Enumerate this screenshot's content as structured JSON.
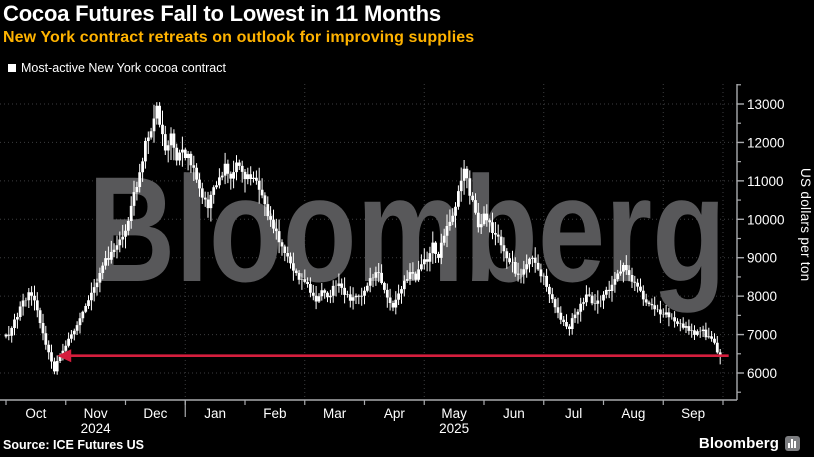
{
  "header": {
    "title": "Cocoa Futures Fall to Lowest in 11 Months",
    "subtitle": "New York contract retreats on outlook for improving supplies"
  },
  "legend": {
    "marker_color": "#ffffff",
    "label": "Most-active New York cocoa contract"
  },
  "footer": {
    "source": "Source: ICE Futures US",
    "brand": "Bloomberg",
    "brand_icon": "bar-chart-logo"
  },
  "colors": {
    "background": "#000000",
    "title": "#ffffff",
    "subtitle": "#ffb300",
    "bars": "#ffffff",
    "grid": "#3c3d3f",
    "axis": "#a9abae",
    "tick_label": "#ffffff",
    "annotation": "#d51e3d",
    "watermark": "#58585a"
  },
  "chart_data": {
    "type": "bar",
    "subtype": "ohlc-daily-bars",
    "title": "Cocoa Futures Fall to Lowest in 11 Months",
    "series_name": "Most-active New York cocoa contract",
    "xlabel": "",
    "ylabel": "US dollars per ton",
    "yticks": [
      6000,
      7000,
      8000,
      9000,
      10000,
      11000,
      12000,
      13000
    ],
    "ytick_minor_step": 500,
    "ylim": [
      5400,
      13450
    ],
    "grid": "dotted",
    "legend_position": "top-left",
    "watermark": "Bloomberg",
    "x_months": [
      "Oct",
      "Nov",
      "Dec",
      "Jan",
      "Feb",
      "Mar",
      "Apr",
      "May",
      "Jun",
      "Jul",
      "Aug",
      "Sep"
    ],
    "year_labels": [
      {
        "label": "2024",
        "month_index": 1
      },
      {
        "label": "2025",
        "month_index": 7
      }
    ],
    "vertical_grid_month_boundaries": [
      3,
      5,
      7,
      9,
      11,
      12
    ],
    "days_per_month": 21,
    "total_days": 252,
    "annotation": {
      "shape": "horizontal-arrow-left",
      "value": 6450,
      "from_day": 18,
      "to_day": 254,
      "color": "#d51e3d",
      "meaning": "current price back at level of 11-month-ago low"
    },
    "price_path_anchors": [
      [
        0,
        6950
      ],
      [
        2,
        7150
      ],
      [
        4,
        7500
      ],
      [
        6,
        7850
      ],
      [
        8,
        8100
      ],
      [
        10,
        7900
      ],
      [
        12,
        7300
      ],
      [
        14,
        6800
      ],
      [
        16,
        6300
      ],
      [
        17,
        6100
      ],
      [
        19,
        6450
      ],
      [
        21,
        6700
      ],
      [
        23,
        7000
      ],
      [
        26,
        7400
      ],
      [
        29,
        7850
      ],
      [
        32,
        8350
      ],
      [
        35,
        8900
      ],
      [
        38,
        9300
      ],
      [
        41,
        9600
      ],
      [
        43,
        9900
      ],
      [
        45,
        10600
      ],
      [
        47,
        11300
      ],
      [
        49,
        11900
      ],
      [
        51,
        12250
      ],
      [
        52,
        12600
      ],
      [
        53,
        12950
      ],
      [
        55,
        12250
      ],
      [
        56,
        11850
      ],
      [
        58,
        12250
      ],
      [
        60,
        11650
      ],
      [
        62,
        11950
      ],
      [
        63,
        11700
      ],
      [
        65,
        11450
      ],
      [
        67,
        11000
      ],
      [
        69,
        10600
      ],
      [
        71,
        10350
      ],
      [
        73,
        10750
      ],
      [
        75,
        11100
      ],
      [
        77,
        11400
      ],
      [
        79,
        11050
      ],
      [
        81,
        11500
      ],
      [
        83,
        11250
      ],
      [
        85,
        11050
      ],
      [
        87,
        11200
      ],
      [
        89,
        10700
      ],
      [
        91,
        10300
      ],
      [
        93,
        9950
      ],
      [
        95,
        9600
      ],
      [
        97,
        9300
      ],
      [
        99,
        8950
      ],
      [
        101,
        8650
      ],
      [
        104,
        8400
      ],
      [
        107,
        8150
      ],
      [
        109,
        7950
      ],
      [
        111,
        8150
      ],
      [
        113,
        7900
      ],
      [
        115,
        8200
      ],
      [
        117,
        8350
      ],
      [
        119,
        8100
      ],
      [
        121,
        7950
      ],
      [
        124,
        8050
      ],
      [
        126,
        8150
      ],
      [
        128,
        8400
      ],
      [
        130,
        8700
      ],
      [
        132,
        8350
      ],
      [
        134,
        7950
      ],
      [
        136,
        7750
      ],
      [
        138,
        8100
      ],
      [
        140,
        8400
      ],
      [
        142,
        8650
      ],
      [
        144,
        8500
      ],
      [
        146,
        8800
      ],
      [
        148,
        9000
      ],
      [
        150,
        9300
      ],
      [
        152,
        9100
      ],
      [
        154,
        9550
      ],
      [
        156,
        9950
      ],
      [
        158,
        10400
      ],
      [
        160,
        11000
      ],
      [
        161,
        11250
      ],
      [
        163,
        10700
      ],
      [
        165,
        10150
      ],
      [
        166,
        9800
      ],
      [
        168,
        10050
      ],
      [
        170,
        9900
      ],
      [
        172,
        9600
      ],
      [
        174,
        9300
      ],
      [
        176,
        9000
      ],
      [
        178,
        8800
      ],
      [
        180,
        8500
      ],
      [
        182,
        8700
      ],
      [
        184,
        9000
      ],
      [
        186,
        8800
      ],
      [
        188,
        8600
      ],
      [
        190,
        8300
      ],
      [
        192,
        7950
      ],
      [
        194,
        7600
      ],
      [
        196,
        7300
      ],
      [
        198,
        7200
      ],
      [
        200,
        7500
      ],
      [
        202,
        7800
      ],
      [
        204,
        8000
      ],
      [
        206,
        7850
      ],
      [
        209,
        7950
      ],
      [
        211,
        8100
      ],
      [
        213,
        8350
      ],
      [
        215,
        8600
      ],
      [
        217,
        8800
      ],
      [
        219,
        8550
      ],
      [
        221,
        8300
      ],
      [
        223,
        8100
      ],
      [
        225,
        7900
      ],
      [
        227,
        7700
      ],
      [
        230,
        7600
      ],
      [
        232,
        7500
      ],
      [
        234,
        7400
      ],
      [
        236,
        7300
      ],
      [
        238,
        7200
      ],
      [
        240,
        7100
      ],
      [
        242,
        7000
      ],
      [
        244,
        7100
      ],
      [
        246,
        7000
      ],
      [
        248,
        6900
      ],
      [
        249,
        6750
      ],
      [
        250,
        6600
      ],
      [
        251,
        6480
      ]
    ]
  }
}
